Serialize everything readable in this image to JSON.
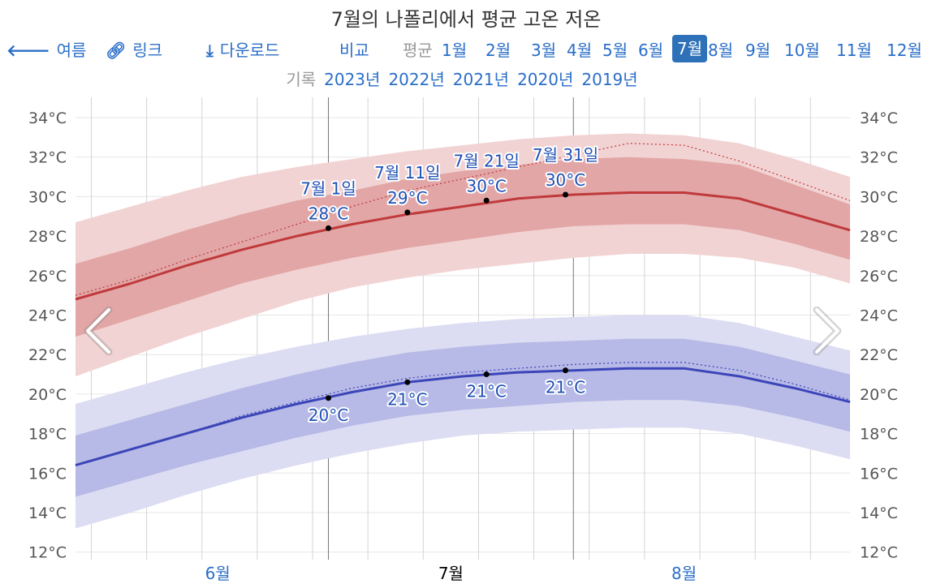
{
  "title": "7월의 나폴리에서 평균 고온 저온",
  "nav": {
    "back_label": "여름",
    "link_label": "링크",
    "download_label": "다운로드",
    "compare_label": "비교",
    "average_label": "평균",
    "months": [
      "1월",
      "2월",
      "3월",
      "4월",
      "5월",
      "6월",
      "7월",
      "8월",
      "9월",
      "10월",
      "11월",
      "12월"
    ],
    "active_month": "7월",
    "history_label": "기록",
    "years": [
      "2023년",
      "2022년",
      "2021년",
      "2020년",
      "2019년"
    ]
  },
  "colors": {
    "high_line": "#c0393b",
    "high_band_inner": "#e2a6a6",
    "high_band_outer": "#f2d3d3",
    "low_line": "#3b45b8",
    "low_band_inner": "#b7b9e6",
    "low_band_outer": "#dcdcf2",
    "annotation_text": "#1f4fb5",
    "link": "#2a6ec8"
  },
  "chart_data": {
    "type": "area",
    "x_axis": {
      "month_labels": [
        "6월",
        "7월",
        "8월"
      ],
      "active_month_label": "7월",
      "start": "5월 20일",
      "end": "8월 25일"
    },
    "y_axis": {
      "unit": "°C",
      "range": [
        11.5,
        35
      ],
      "ticks": [
        12,
        14,
        16,
        18,
        20,
        22,
        24,
        26,
        28,
        30,
        32,
        34
      ],
      "tick_labels": [
        "12°C",
        "14°C",
        "16°C",
        "18°C",
        "20°C",
        "22°C",
        "24°C",
        "26°C",
        "28°C",
        "30°C",
        "32°C",
        "34°C"
      ]
    },
    "x_days": [
      0,
      7,
      14,
      21,
      28,
      35,
      42,
      49,
      56,
      63,
      70,
      77,
      84,
      91,
      98
    ],
    "series": [
      {
        "key": "high",
        "values": [
          24.8,
          25.6,
          26.5,
          27.3,
          28.0,
          28.6,
          29.1,
          29.5,
          29.9,
          30.1,
          30.2,
          30.2,
          29.9,
          29.1,
          28.3
        ],
        "p25": [
          22.9,
          23.8,
          24.7,
          25.6,
          26.3,
          26.9,
          27.4,
          27.8,
          28.2,
          28.5,
          28.6,
          28.6,
          28.3,
          27.6,
          26.8
        ],
        "p75": [
          26.6,
          27.4,
          28.3,
          29.1,
          29.8,
          30.3,
          30.9,
          31.3,
          31.6,
          31.9,
          32.0,
          31.9,
          31.6,
          30.6,
          29.6
        ],
        "p10": [
          20.9,
          21.9,
          22.9,
          23.8,
          24.7,
          25.4,
          25.9,
          26.3,
          26.6,
          26.9,
          27.1,
          27.1,
          26.9,
          26.4,
          25.6
        ],
        "p90": [
          28.7,
          29.5,
          30.3,
          31.0,
          31.5,
          31.9,
          32.3,
          32.6,
          32.9,
          33.1,
          33.2,
          33.1,
          32.7,
          31.9,
          31.0
        ],
        "recent": [
          25.0,
          25.8,
          26.8,
          27.7,
          28.6,
          29.5,
          30.3,
          30.9,
          31.5,
          32.1,
          32.7,
          32.6,
          31.8,
          30.8,
          29.8
        ]
      },
      {
        "key": "low",
        "values": [
          16.4,
          17.2,
          18.0,
          18.8,
          19.5,
          20.1,
          20.6,
          20.9,
          21.1,
          21.2,
          21.3,
          21.3,
          20.9,
          20.3,
          19.6
        ],
        "p25": [
          14.8,
          15.6,
          16.4,
          17.1,
          17.8,
          18.4,
          18.9,
          19.2,
          19.4,
          19.6,
          19.7,
          19.7,
          19.4,
          18.8,
          18.1
        ],
        "p75": [
          17.9,
          18.7,
          19.5,
          20.3,
          21.0,
          21.6,
          22.1,
          22.4,
          22.6,
          22.7,
          22.8,
          22.8,
          22.4,
          21.7,
          21.0
        ],
        "p10": [
          13.2,
          14.0,
          14.9,
          15.7,
          16.4,
          17.0,
          17.5,
          17.9,
          18.1,
          18.2,
          18.3,
          18.3,
          18.0,
          17.4,
          16.7
        ],
        "p90": [
          19.5,
          20.3,
          21.1,
          21.8,
          22.4,
          22.9,
          23.3,
          23.6,
          23.8,
          23.9,
          24.0,
          24.0,
          23.6,
          22.9,
          22.2
        ],
        "recent": [
          16.4,
          17.2,
          18.0,
          18.9,
          19.6,
          20.3,
          20.8,
          21.1,
          21.3,
          21.5,
          21.6,
          21.6,
          21.2,
          20.5,
          19.7
        ]
      }
    ],
    "annotations": [
      {
        "date_label": "7월 1일",
        "day": 32,
        "high": 28.4,
        "high_label": "28°C",
        "low": 19.8,
        "low_label": "20°C"
      },
      {
        "date_label": "7월 11일",
        "day": 42,
        "high": 29.2,
        "high_label": "29°C",
        "low": 20.6,
        "low_label": "21°C"
      },
      {
        "date_label": "7월 21일",
        "day": 52,
        "high": 29.8,
        "high_label": "30°C",
        "low": 21.0,
        "low_label": "21°C"
      },
      {
        "date_label": "7월 31일",
        "day": 62,
        "high": 30.1,
        "high_label": "30°C",
        "low": 21.2,
        "low_label": "21°C"
      }
    ]
  }
}
